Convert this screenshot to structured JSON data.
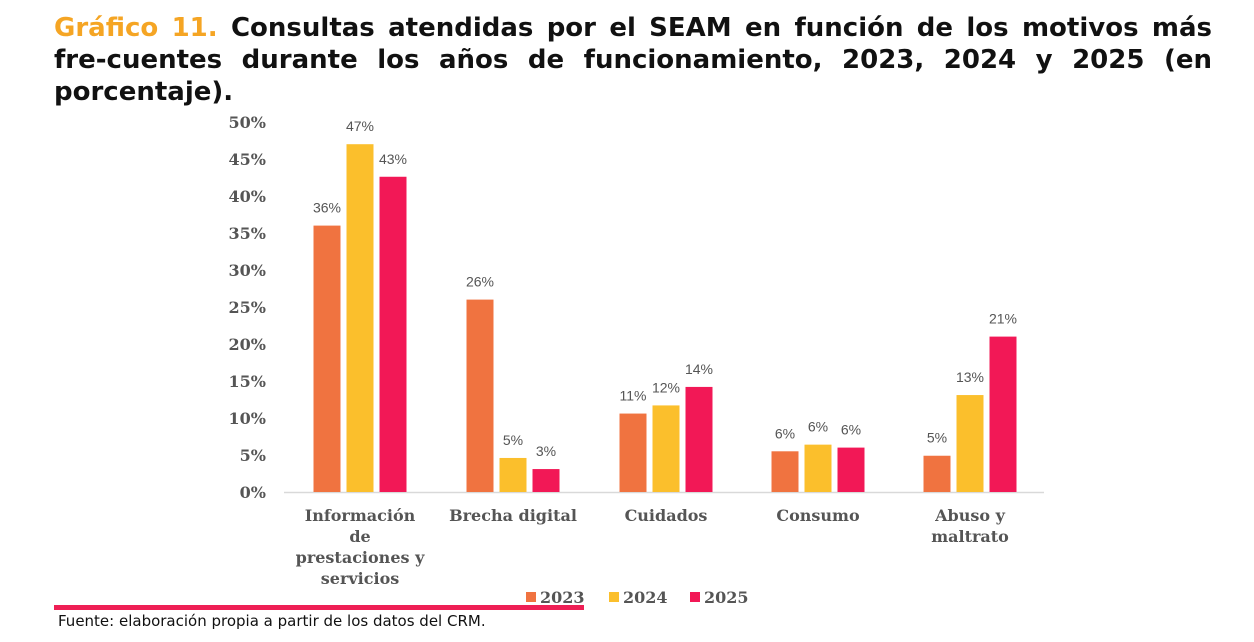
{
  "title": {
    "label": "Gráfico 11.",
    "text": "Consultas atendidas por el SEAM en función de los motivos más fre-cuentes durante los años de funcionamiento, 2023, 2024 y 2025 (en porcentaje)."
  },
  "source": "Fuente: elaboración propia a partir de los datos del CRM.",
  "colors": {
    "2023": "#F07340",
    "2024": "#FBBF2C",
    "2025": "#F21856",
    "accent": "#F5A524",
    "line": "#EE1F55"
  },
  "chart_data": {
    "type": "bar",
    "title": "",
    "xlabel": "",
    "ylabel": "",
    "ylim": [
      0,
      50
    ],
    "yticks": [
      "0%",
      "5%",
      "10%",
      "15%",
      "20%",
      "25%",
      "30%",
      "35%",
      "40%",
      "45%",
      "50%"
    ],
    "categories": [
      [
        "Información",
        "de",
        "prestaciones y",
        "servicios"
      ],
      [
        "Brecha digital"
      ],
      [
        "Cuidados"
      ],
      [
        "Consumo"
      ],
      [
        "Abuso y",
        "maltrato"
      ]
    ],
    "series": [
      {
        "name": "2023",
        "values": [
          36,
          26,
          10.6,
          5.5,
          4.9
        ],
        "labels": [
          "36%",
          "26%",
          "11%",
          "6%",
          "5%"
        ]
      },
      {
        "name": "2024",
        "values": [
          47,
          4.6,
          11.7,
          6.4,
          13.1
        ],
        "labels": [
          "47%",
          "5%",
          "12%",
          "6%",
          "13%"
        ]
      },
      {
        "name": "2025",
        "values": [
          42.6,
          3.1,
          14.2,
          6.0,
          21.0
        ],
        "labels": [
          "43%",
          "3%",
          "14%",
          "6%",
          "21%"
        ]
      }
    ],
    "legend": "bottom"
  }
}
